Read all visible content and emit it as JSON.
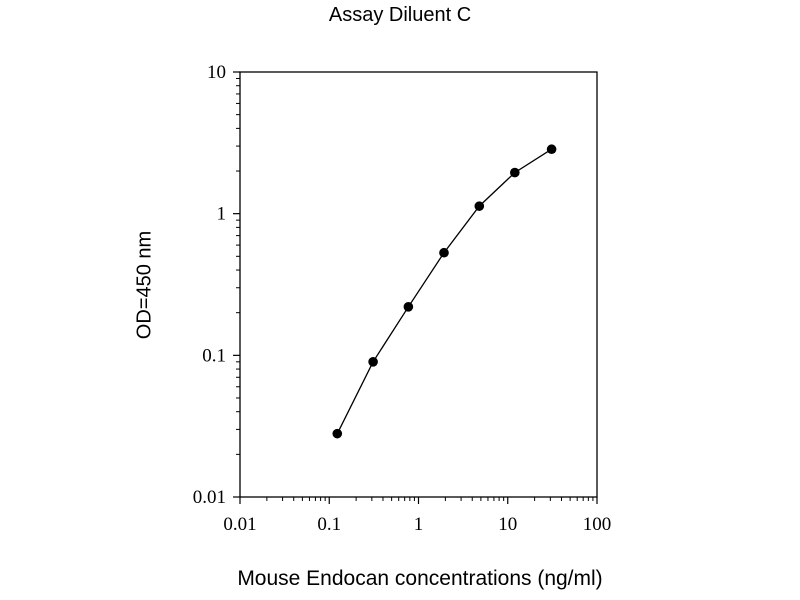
{
  "chart_data": {
    "type": "line",
    "title": "Assay Diluent C",
    "xlabel": "Mouse Endocan concentrations (ng/ml)",
    "ylabel": "OD=450 nm",
    "xscale": "log",
    "yscale": "log",
    "xlim": [
      0.01,
      100
    ],
    "ylim": [
      0.01,
      10
    ],
    "x_ticks": [
      0.01,
      0.1,
      1,
      10,
      100
    ],
    "x_tick_labels": [
      "0.01",
      "0.1",
      "1",
      "10",
      "100"
    ],
    "y_ticks": [
      0.01,
      0.1,
      1,
      10
    ],
    "y_tick_labels": [
      "0.01",
      "0.1",
      "1",
      "10"
    ],
    "grid": false,
    "legend": "none",
    "series": [
      {
        "color": "#000000",
        "marker": "circle",
        "x": [
          0.123,
          0.31,
          0.77,
          1.93,
          4.8,
          12.0,
          31.0
        ],
        "y": [
          0.028,
          0.09,
          0.22,
          0.53,
          1.13,
          1.95,
          2.85
        ]
      }
    ]
  }
}
